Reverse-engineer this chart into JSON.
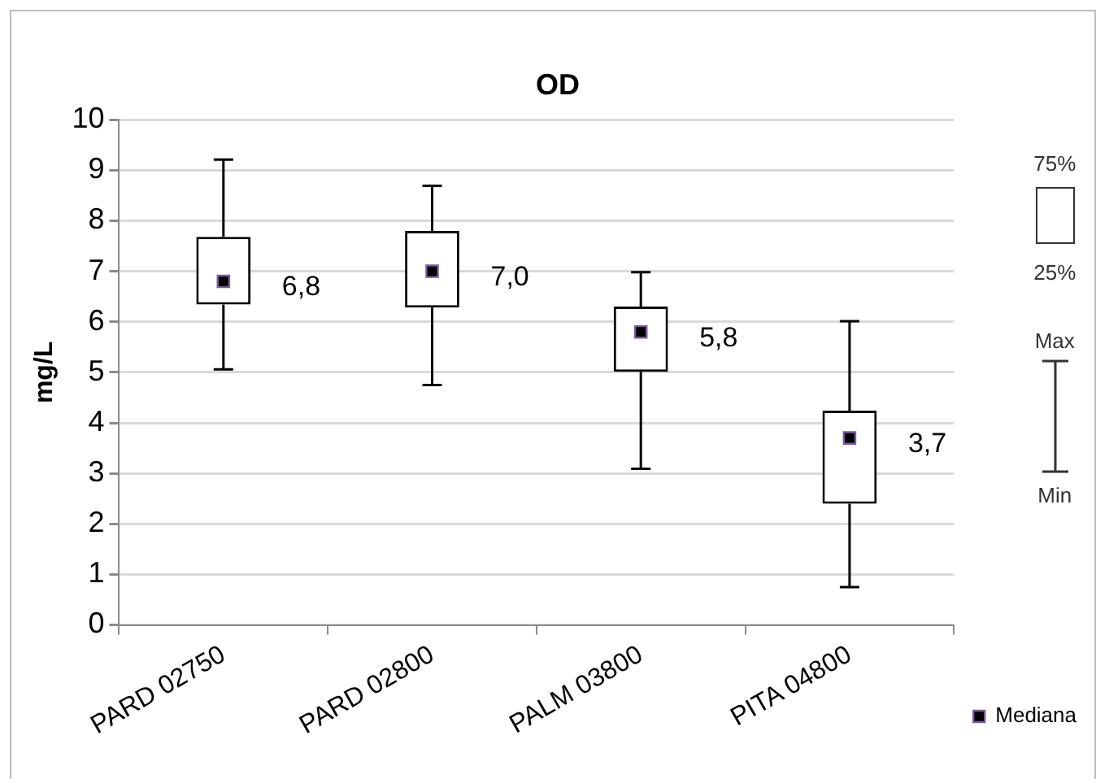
{
  "chart_data": {
    "type": "box",
    "title": "OD",
    "ylabel": "mg/L",
    "categories": [
      "PARD 02750",
      "PARD 02800",
      "PALM 03800",
      "PITA 04800"
    ],
    "ylim": [
      0,
      10
    ],
    "yticks": [
      0,
      1,
      2,
      3,
      4,
      5,
      6,
      7,
      8,
      9,
      10
    ],
    "grid": "y",
    "legend": "bottom right",
    "marker": "square",
    "series": [
      {
        "name": "Mediana",
        "color": "#000000",
        "value_labels": [
          "6,8",
          "7,0",
          "5,8",
          "3,7"
        ],
        "boxes": [
          {
            "low": 5.06,
            "q1": 6.34,
            "median": 6.8,
            "q3": 7.68,
            "high": 9.21
          },
          {
            "low": 4.75,
            "q1": 6.28,
            "median": 7.0,
            "q3": 7.8,
            "high": 8.69
          },
          {
            "low": 3.09,
            "q1": 5.01,
            "median": 5.8,
            "q3": 6.3,
            "high": 6.98
          },
          {
            "low": 0.75,
            "q1": 2.4,
            "median": 3.7,
            "q3": 4.24,
            "high": 6.01
          }
        ]
      }
    ],
    "annotations": [
      "75%",
      "25%",
      "Max",
      "Min"
    ]
  }
}
